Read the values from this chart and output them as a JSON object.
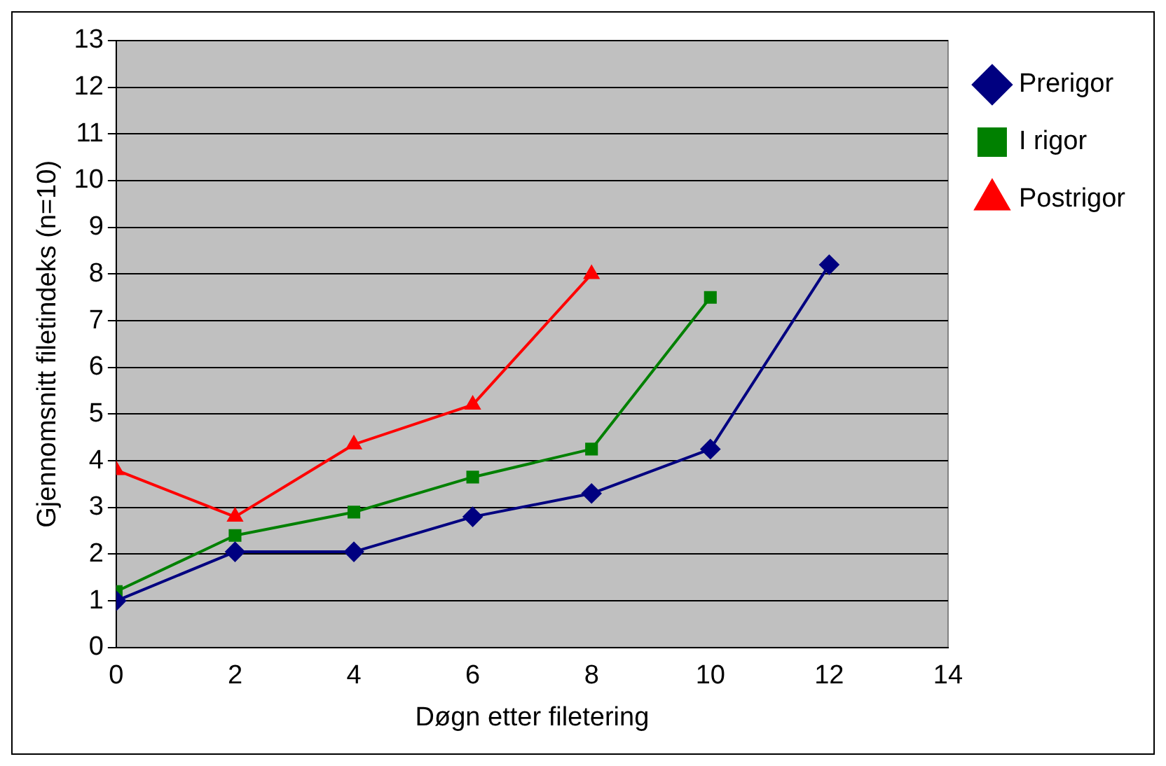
{
  "chart_data": {
    "type": "line",
    "xlabel": "Døgn etter filetering",
    "ylabel": "Gjennomsnitt filetindeks (n=10)",
    "xlim": [
      0,
      14
    ],
    "xticks": [
      0,
      2,
      4,
      6,
      8,
      10,
      12,
      14
    ],
    "ylim": [
      0,
      13
    ],
    "yticks": [
      0,
      1,
      2,
      3,
      4,
      5,
      6,
      7,
      8,
      9,
      10,
      11,
      12,
      13
    ],
    "grid": "y",
    "legend": "top right",
    "series": [
      {
        "name": "Prerigor",
        "color": "#000080",
        "marker": "diamond",
        "x": [
          0,
          2,
          4,
          6,
          8,
          10,
          12
        ],
        "values": [
          1.0,
          2.05,
          2.05,
          2.8,
          3.3,
          4.25,
          8.2
        ]
      },
      {
        "name": "I rigor",
        "color": "#008000",
        "marker": "square",
        "x": [
          0,
          2,
          4,
          6,
          8,
          10
        ],
        "values": [
          1.2,
          2.4,
          2.9,
          3.65,
          4.25,
          7.5
        ]
      },
      {
        "name": "Postrigor",
        "color": "#ff0000",
        "marker": "triangle",
        "x": [
          0,
          2,
          4,
          6,
          8
        ],
        "values": [
          3.8,
          2.8,
          4.35,
          5.2,
          8.0
        ]
      }
    ]
  }
}
